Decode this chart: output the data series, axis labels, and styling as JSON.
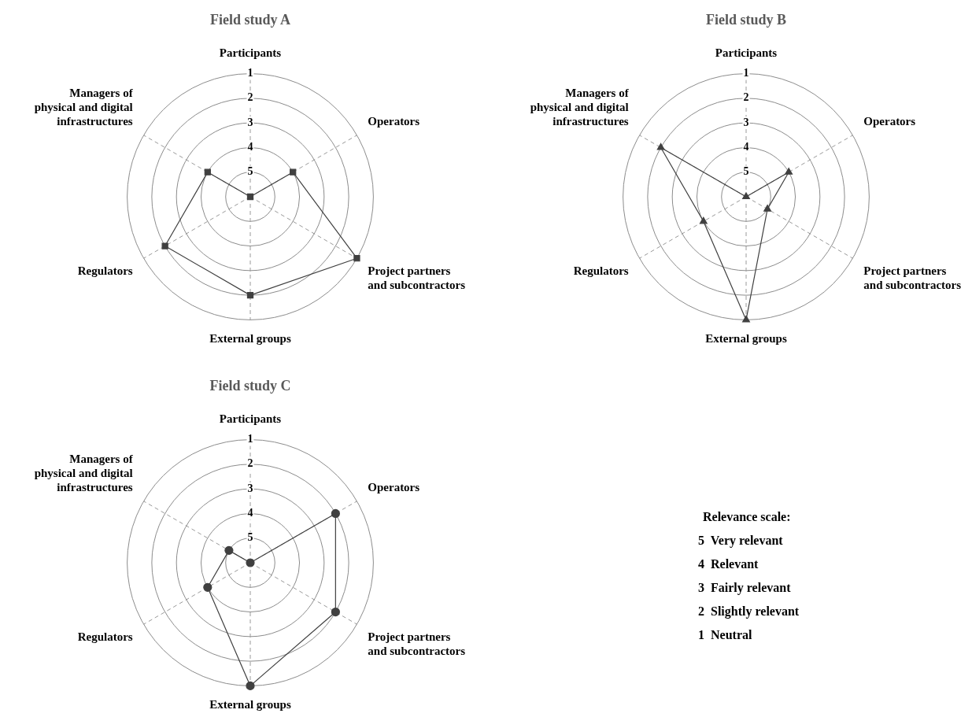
{
  "chart_data": [
    {
      "type": "radar",
      "title": "Field study A",
      "categories": [
        "Participants",
        "Operators",
        "Project partners\nand subcontractors",
        "External groups",
        "Regulators",
        "Managers of\nphysical and digital\ninfrastructures"
      ],
      "series": [
        {
          "color": "#404040",
          "values": [
            6,
            4,
            1,
            2,
            2,
            4
          ]
        }
      ],
      "ylim": [
        6,
        1
      ],
      "yticks": [
        5,
        4,
        3,
        2,
        1
      ],
      "grid": true,
      "marker": "square",
      "line_style": "solid"
    },
    {
      "type": "radar",
      "title": "Field study B",
      "categories": [
        "Participants",
        "Operators",
        "Project partners\nand subcontractors",
        "External groups",
        "Regulators",
        "Managers of\nphysical and digital\ninfrastructures"
      ],
      "series": [
        {
          "color": "#404040",
          "values": [
            6,
            4,
            5,
            1,
            4,
            2
          ]
        }
      ],
      "ylim": [
        6,
        1
      ],
      "yticks": [
        5,
        4,
        3,
        2,
        1
      ],
      "grid": true,
      "marker": "triangle",
      "line_style": "solid"
    },
    {
      "type": "radar",
      "title": "Field study C",
      "categories": [
        "Participants",
        "Operators",
        "Project partners\nand subcontractors",
        "External groups",
        "Regulators",
        "Managers of\nphysical and digital\ninfrastructures"
      ],
      "series": [
        {
          "color": "#404040",
          "values": [
            6,
            2,
            2,
            1,
            4,
            5
          ]
        }
      ],
      "ylim": [
        6,
        1
      ],
      "yticks": [
        5,
        4,
        3,
        2,
        1
      ],
      "grid": true,
      "marker": "circle",
      "line_style": "solid"
    },
    {
      "type": "other",
      "title": "Relevance scale:",
      "annotations": [
        "5  Very relevant",
        "4  Relevant",
        "3  Fairly relevant",
        "2  Slightly relevant",
        "1  Neutral"
      ]
    }
  ]
}
